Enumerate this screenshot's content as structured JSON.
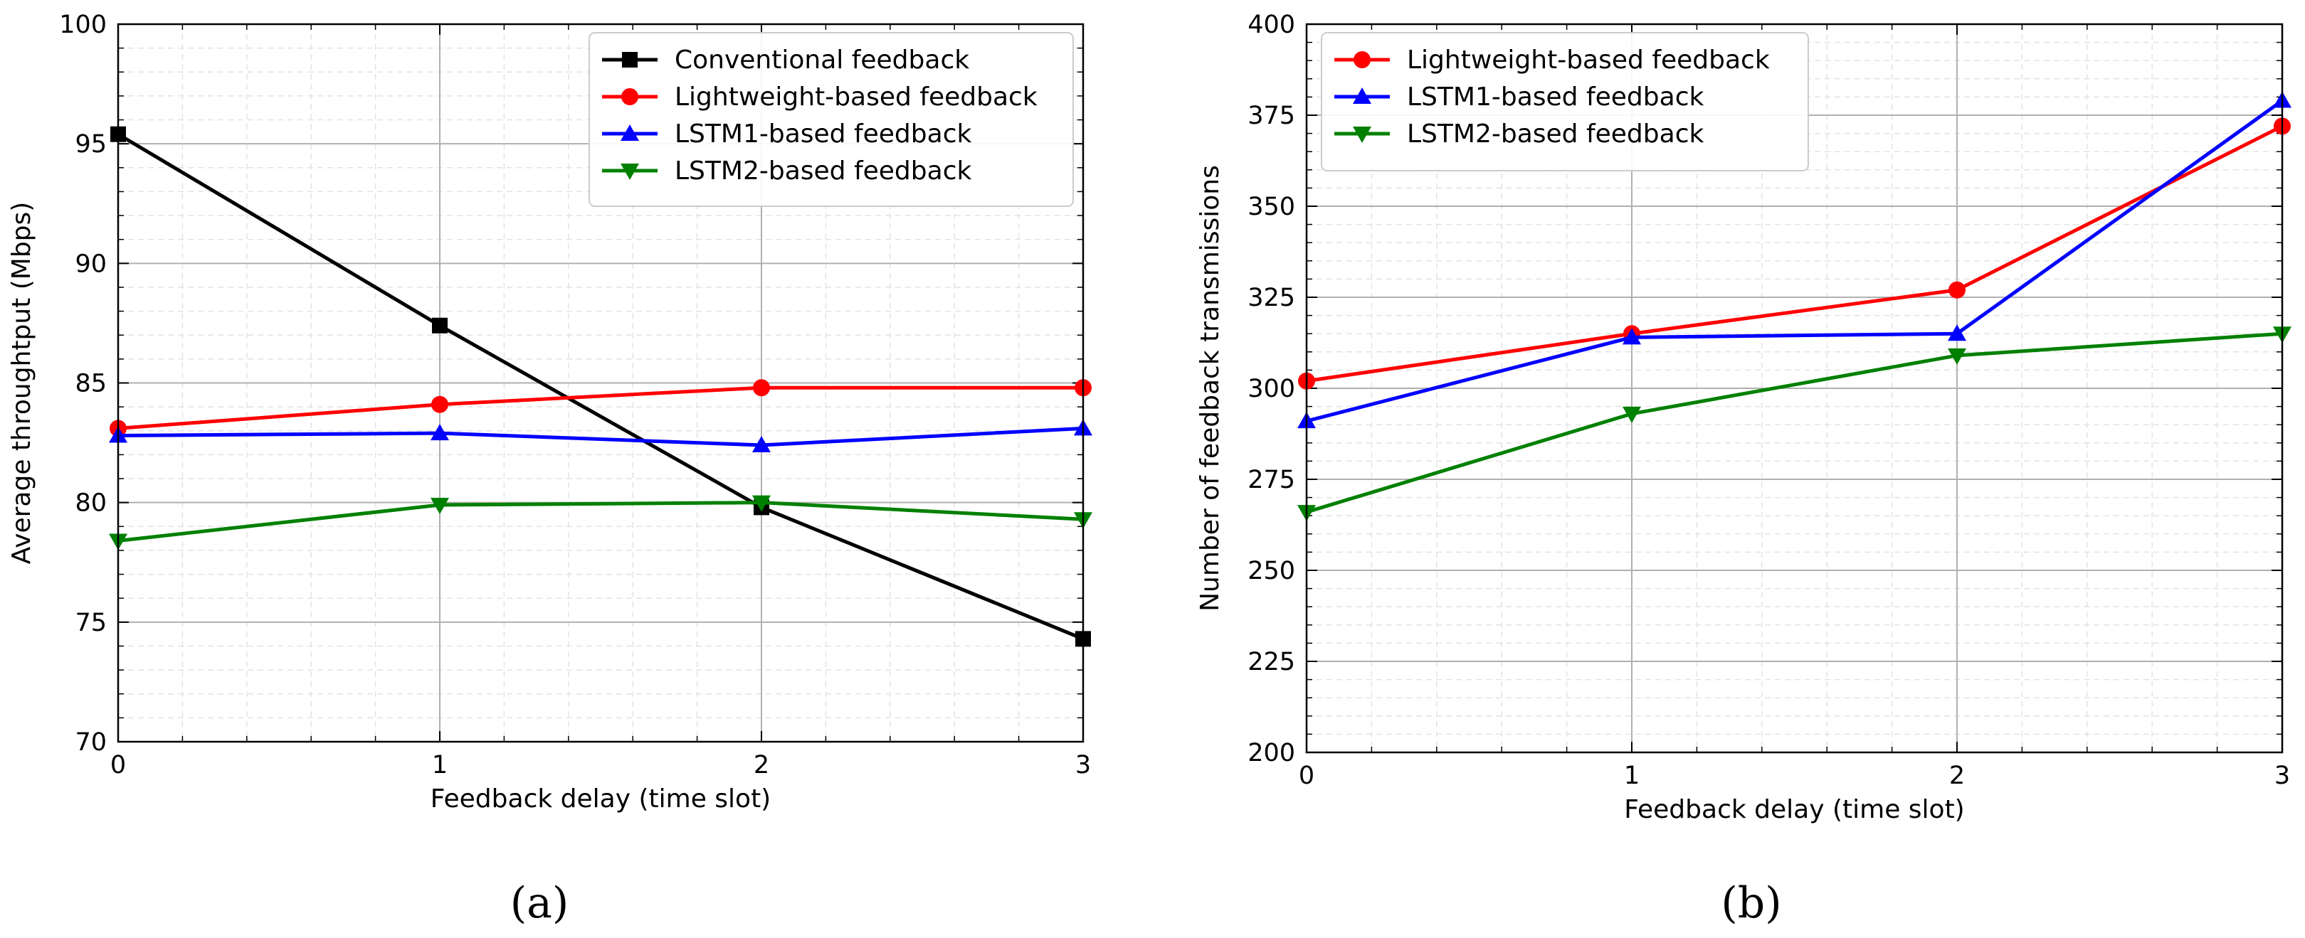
{
  "chart_data": [
    {
      "type": "line",
      "caption": "(a)",
      "xlabel": "Feedback delay (time slot)",
      "ylabel": "Average throughtput (Mbps)",
      "xlim": [
        0,
        3
      ],
      "ylim": [
        70,
        100
      ],
      "xticks": [
        0,
        1,
        2,
        3
      ],
      "yticks": [
        70,
        75,
        80,
        85,
        90,
        95,
        100
      ],
      "x_minor_step": 0.2,
      "y_minor_step": 1,
      "grid": true,
      "legend": "top-right",
      "x": [
        0,
        1,
        2,
        3
      ],
      "series": [
        {
          "name": "Conventional feedback",
          "color": "#000000",
          "marker": "square",
          "values": [
            95.4,
            87.4,
            79.8,
            74.3
          ]
        },
        {
          "name": "Lightweight-based feedback",
          "color": "#ff0000",
          "marker": "circle",
          "values": [
            83.1,
            84.1,
            84.8,
            84.8
          ]
        },
        {
          "name": "LSTM1-based feedback",
          "color": "#0000ff",
          "marker": "triangle-up",
          "values": [
            82.8,
            82.9,
            82.4,
            83.1
          ]
        },
        {
          "name": "LSTM2-based feedback",
          "color": "#008000",
          "marker": "triangle-down",
          "values": [
            78.4,
            79.9,
            80.0,
            79.3
          ]
        }
      ]
    },
    {
      "type": "line",
      "caption": "(b)",
      "xlabel": "Feedback delay (time slot)",
      "ylabel": "Number of feedback transmissions",
      "xlim": [
        0,
        3
      ],
      "ylim": [
        200,
        400
      ],
      "xticks": [
        0,
        1,
        2,
        3
      ],
      "yticks": [
        200,
        225,
        250,
        275,
        300,
        325,
        350,
        375,
        400
      ],
      "x_minor_step": 0.2,
      "y_minor_step": 5,
      "grid": true,
      "legend": "top-left",
      "x": [
        0,
        1,
        2,
        3
      ],
      "series": [
        {
          "name": "Lightweight-based feedback",
          "color": "#ff0000",
          "marker": "circle",
          "values": [
            302,
            315,
            327,
            372
          ]
        },
        {
          "name": "LSTM1-based feedback",
          "color": "#0000ff",
          "marker": "triangle-up",
          "values": [
            291,
            314,
            315,
            379
          ]
        },
        {
          "name": "LSTM2-based feedback",
          "color": "#008000",
          "marker": "triangle-down",
          "values": [
            266,
            293,
            309,
            315
          ]
        }
      ]
    }
  ]
}
